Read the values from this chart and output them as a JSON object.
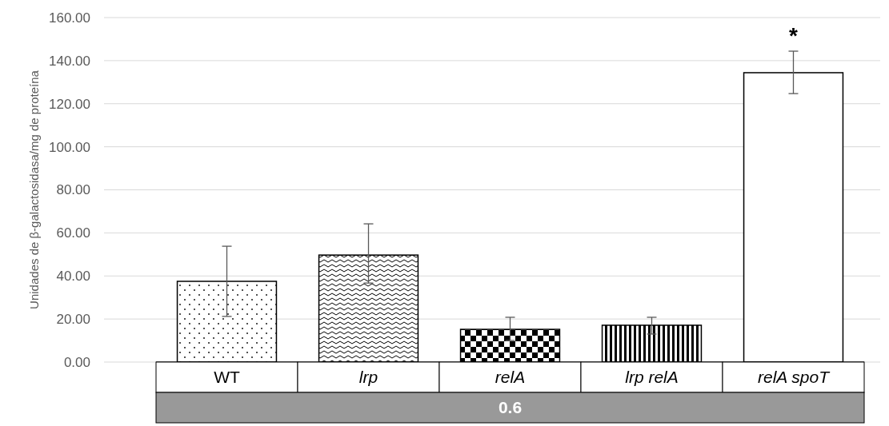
{
  "chart_data": {
    "type": "bar",
    "ylabel": "Unidades de β-galactosidasa/mg de proteína",
    "categories": [
      "WT",
      "lrp",
      "relA",
      "lrp relA",
      "relA spoT"
    ],
    "values": [
      37.5,
      49.7,
      15.2,
      17.1,
      134.4
    ],
    "errors": [
      [
        21.2,
        53.8
      ],
      [
        36.7,
        64.2
      ],
      [
        10,
        20.8
      ],
      [
        13,
        20.8
      ],
      [
        124.7,
        144.4
      ]
    ],
    "colors": [
      "#000000",
      "#000000",
      "#000000",
      "#000000",
      "#ffffff"
    ],
    "ylim": [
      0,
      160
    ],
    "yticks": [
      {
        "value": 0,
        "label": "0.00"
      },
      {
        "value": 20,
        "label": "20.00"
      },
      {
        "value": 40,
        "label": "40.00"
      },
      {
        "value": 60,
        "label": "60.00"
      },
      {
        "value": 80,
        "label": "80.00"
      },
      {
        "value": 100,
        "label": "100.00"
      },
      {
        "value": 120,
        "label": "120.00"
      },
      {
        "value": 140,
        "label": "140.00"
      },
      {
        "value": 160,
        "label": "160.00"
      }
    ],
    "grid": "y",
    "annotations": [
      "*",
      "0.6"
    ]
  }
}
